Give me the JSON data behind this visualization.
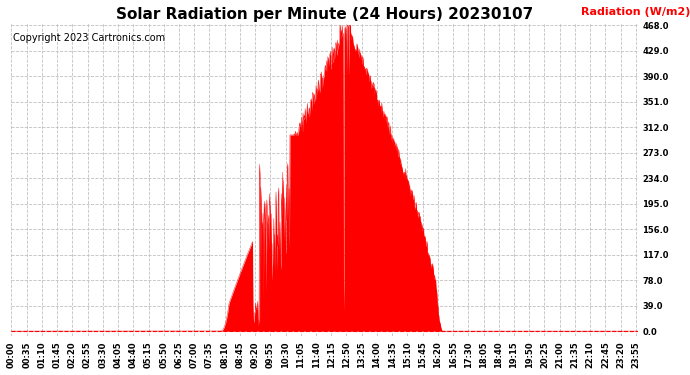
{
  "title": "Solar Radiation per Minute (24 Hours) 20230107",
  "copyright": "Copyright 2023 Cartronics.com",
  "ylabel": "Radiation (W/m2)",
  "ylabel_color": "#ff0000",
  "yticks": [
    0.0,
    39.0,
    78.0,
    117.0,
    156.0,
    195.0,
    234.0,
    273.0,
    312.0,
    351.0,
    390.0,
    429.0,
    468.0
  ],
  "ymin": 0.0,
  "ymax": 468.0,
  "fill_color": "#ff0000",
  "line_color": "#ff0000",
  "background_color": "#ffffff",
  "plot_bg_color": "#ffffff",
  "grid_color": "#c0c0c0",
  "hline_color": "#ff0000",
  "title_fontsize": 11,
  "copyright_fontsize": 7,
  "ylabel_fontsize": 8,
  "tick_fontsize": 6,
  "total_minutes": 1440,
  "sunrise_minute": 480,
  "sunset_minute": 990,
  "peak_minute": 770,
  "peak_value": 468.0,
  "xtick_step": 35
}
